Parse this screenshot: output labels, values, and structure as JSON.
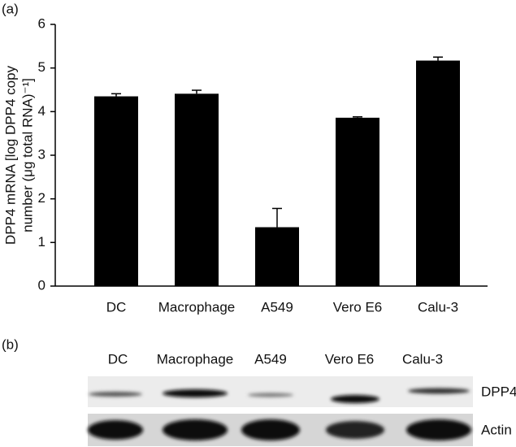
{
  "panel_a": "(a)",
  "panel_b": "(b)",
  "chart_data": {
    "type": "bar",
    "ylabel_lines": [
      "DPP4 mRNA [log DPP4 copy",
      "number (μg total RNA)⁻¹]"
    ],
    "categories": [
      "DC",
      "Macrophage",
      "A549",
      "Vero E6",
      "Calu-3"
    ],
    "values": [
      4.35,
      4.41,
      1.35,
      3.86,
      5.17
    ],
    "errors": [
      0.06,
      0.08,
      0.43,
      0.02,
      0.08
    ],
    "color": "#000000",
    "ylim": [
      0,
      6
    ],
    "yticks": [
      0,
      1,
      2,
      3,
      4,
      5,
      6
    ],
    "grid": false
  },
  "blot": {
    "lanes": [
      "DC",
      "Macrophage",
      "A549",
      "Vero E6",
      "Calu-3"
    ],
    "rows": [
      "DPP4",
      "Actin"
    ]
  }
}
